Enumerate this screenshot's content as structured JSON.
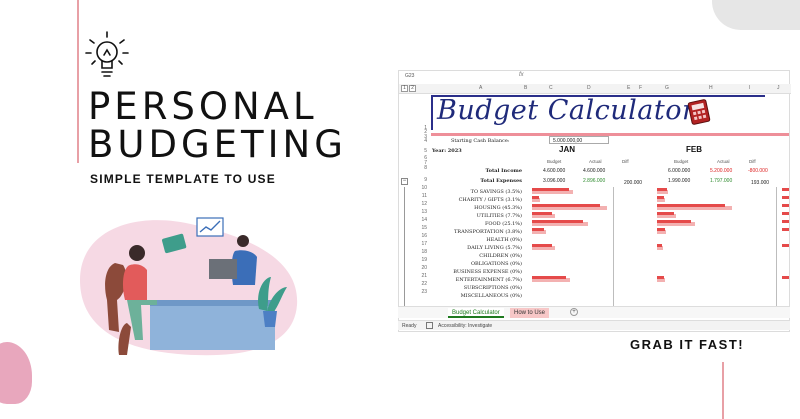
{
  "promo": {
    "headline_line1": "PERSONAL",
    "headline_line2": "BUDGETING",
    "subhead": "SIMPLE TEMPLATE TO USE",
    "cta": "GRAB IT FAST!"
  },
  "sheet": {
    "namebox": "G23",
    "fx": "fx",
    "group_levels": [
      "1",
      "2"
    ],
    "columns": [
      "A",
      "B",
      "C",
      "D",
      "E",
      "F",
      "G",
      "H",
      "I",
      "J"
    ],
    "rows": [
      "1",
      "2",
      "3",
      "4",
      "5",
      "6",
      "7",
      "8",
      "9",
      "10",
      "11",
      "12",
      "13",
      "14",
      "15",
      "16",
      "17",
      "18",
      "19",
      "20",
      "21",
      "22",
      "23"
    ],
    "title": "Budget Calculator",
    "starting_balance_label": "Starting Cash Balance:",
    "starting_balance_value": "5.000.000,00",
    "year_label": "Year: 2023",
    "months": [
      "JAN",
      "FEB"
    ],
    "col_headers": {
      "budget": "Budget",
      "actual": "Actual",
      "diff": "Diff"
    },
    "total_income_label": "Total Income",
    "total_expenses_label": "Total Expenses",
    "jan": {
      "income_budget": "4.600.000",
      "income_actual": "4.600.000",
      "expense_budget": "3.096.000",
      "expense_actual": "2.896.000",
      "expense_diff": "200.000"
    },
    "feb": {
      "income_budget": "6.000.000",
      "income_actual": "5.200.000",
      "income_diff": "-800.000",
      "expense_budget": "1.990.000",
      "expense_actual": "1.797.000",
      "expense_diff": "193.000"
    },
    "categories": [
      "TO SAVINGS (3.5%)",
      "CHARITY / GIFTS (3.1%)",
      "HOUSING (45.3%)",
      "UTILITIES (7.7%)",
      "FOOD (25.1%)",
      "TRANSPORTATION (3.8%)",
      "HEALTH (0%)",
      "DAILY LIVING (5.7%)",
      "CHILDREN (0%)",
      "OBLIGATIONS (0%)",
      "BUSINESS EXPENSE (0%)",
      "ENTERTAINMENT (6.7%)",
      "SUBSCRIPTIONS (0%)",
      "MISCELLANEOUS (0%)"
    ],
    "jan_bars": [
      0.55,
      0.1,
      1.0,
      0.3,
      0.75,
      0.18,
      0,
      0.3,
      0,
      0,
      0,
      0.5,
      0,
      0
    ],
    "feb_bars": [
      0.15,
      0.1,
      1.0,
      0.25,
      0.5,
      0.12,
      0,
      0.08,
      0,
      0,
      0,
      0.1,
      0,
      0
    ],
    "colors": {
      "bar": "#e54a4a",
      "bar_light": "#f3b1b1",
      "title": "#1f2a7a",
      "accent": "#ee8f99"
    }
  },
  "tabs": {
    "active": "Budget Calculator",
    "second": "How to Use",
    "add": "+"
  },
  "status": {
    "ready": "Ready",
    "accessibility": "Accessibility: Investigate"
  }
}
